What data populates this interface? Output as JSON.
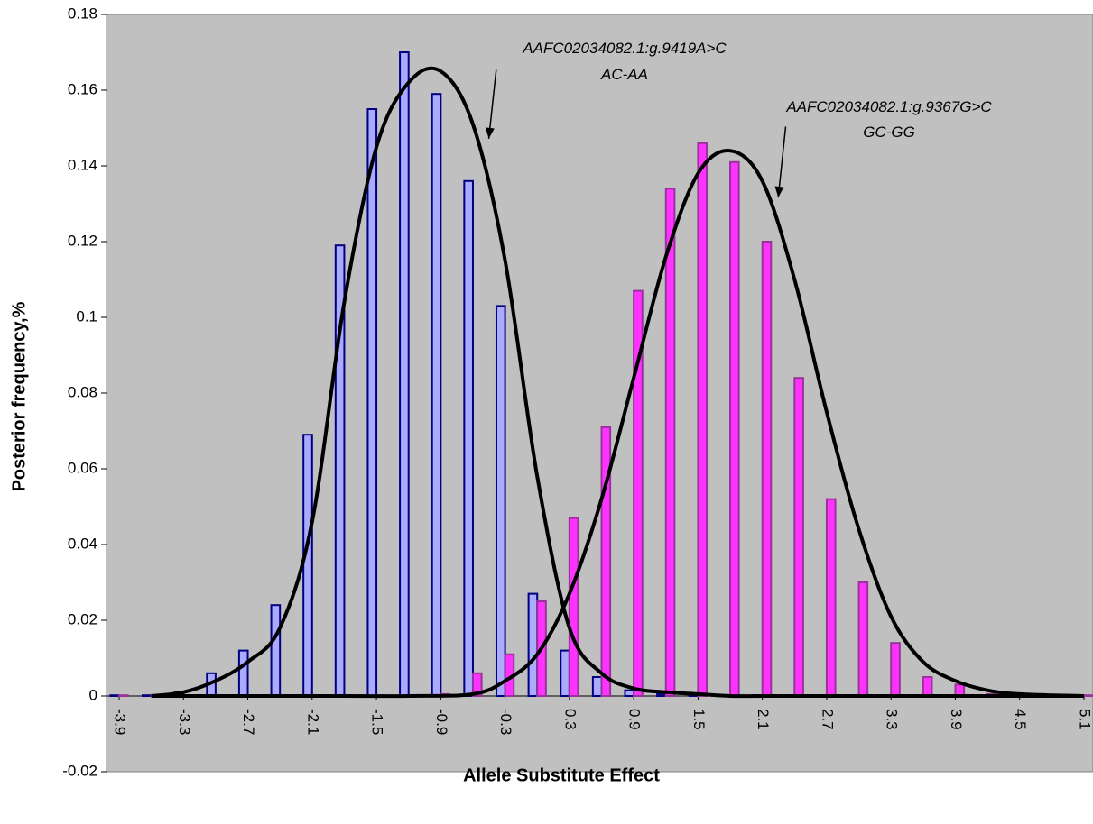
{
  "chart_data": {
    "type": "bar",
    "title": "",
    "xlabel": "Allele Substitute Effect",
    "ylabel": "Posterior frequency,%",
    "ylim": [
      -0.02,
      0.18
    ],
    "yticks": [
      "-0.02",
      "0",
      "0.02",
      "0.04",
      "0.06",
      "0.08",
      "0.1",
      "0.12",
      "0.14",
      "0.16",
      "0.18"
    ],
    "grid": false,
    "x_start": -3.9,
    "x_step": 0.3,
    "x_tick_labels": [
      "-3.9",
      "-3.3",
      "-2.7",
      "-2.1",
      "-1.5",
      "-0.9",
      "-0.3",
      "0.3",
      "0.9",
      "1.5",
      "2.1",
      "2.7",
      "3.3",
      "3.9",
      "4.5",
      "5.1"
    ],
    "categories": [
      "-3.9",
      "-3.6",
      "-3.3",
      "-3.0",
      "-2.7",
      "-2.4",
      "-2.1",
      "-1.8",
      "-1.5",
      "-1.2",
      "-0.9",
      "-0.6",
      "-0.3",
      "0.0",
      "0.3",
      "0.6",
      "0.9",
      "1.2",
      "1.5",
      "1.8",
      "2.1",
      "2.4",
      "2.7",
      "3.0",
      "3.3",
      "3.6",
      "3.9",
      "4.2",
      "4.5",
      "4.8",
      "5.1"
    ],
    "series": [
      {
        "name": "AAFC02034082.1:g.9419A>C AC-AA",
        "kind": "bar",
        "color": "#aaaaff",
        "edge": "#000080",
        "values": [
          0.0,
          0.0,
          0.001,
          0.006,
          0.012,
          0.024,
          0.069,
          0.119,
          0.155,
          0.17,
          0.159,
          0.136,
          0.103,
          0.027,
          0.012,
          0.005,
          0.0015,
          0.0005,
          0.0,
          0.0,
          0.0,
          0.0,
          0.0,
          0.0,
          0.0,
          0.0,
          0.0,
          0.0,
          0.0,
          0.0,
          0.0
        ]
      },
      {
        "name": "AAFC02034082.1:g.9367G>C GC-GG",
        "kind": "bar",
        "color": "#ff33ff",
        "edge": "#993399",
        "values": [
          0.0,
          0.0,
          0.0,
          0.0,
          0.0,
          0.0,
          0.0,
          0.0,
          0.0,
          0.0,
          0.0005,
          0.006,
          0.011,
          0.025,
          0.047,
          0.071,
          0.107,
          0.134,
          0.146,
          0.141,
          0.12,
          0.084,
          0.052,
          0.03,
          0.014,
          0.005,
          0.003,
          0.0005,
          0.0,
          0.0,
          0.0
        ]
      },
      {
        "kind": "curve",
        "color": "#000000",
        "x": [
          -3.6,
          -3.3,
          -3.0,
          -2.7,
          -2.4,
          -2.1,
          -1.8,
          -1.5,
          -1.2,
          -0.9,
          -0.6,
          -0.3,
          0.0,
          0.3,
          0.6,
          0.9,
          1.2,
          1.5,
          1.8,
          2.1,
          2.7,
          3.3,
          3.9,
          4.5,
          5.1
        ],
        "y": [
          0.0,
          0.001,
          0.004,
          0.009,
          0.018,
          0.046,
          0.104,
          0.145,
          0.162,
          0.165,
          0.151,
          0.115,
          0.058,
          0.018,
          0.006,
          0.002,
          0.001,
          0.0005,
          0.0,
          0.0,
          0.0,
          0.0,
          0.0,
          0.0,
          0.0
        ]
      },
      {
        "kind": "curve",
        "color": "#000000",
        "x": [
          -3.6,
          -2.7,
          -1.8,
          -1.2,
          -0.6,
          -0.3,
          0.0,
          0.3,
          0.6,
          0.9,
          1.2,
          1.5,
          1.8,
          2.1,
          2.4,
          2.7,
          3.0,
          3.3,
          3.6,
          3.9,
          4.2,
          4.5,
          5.1
        ],
        "y": [
          0.0,
          0.0,
          0.0,
          0.0,
          0.0005,
          0.004,
          0.011,
          0.027,
          0.052,
          0.084,
          0.116,
          0.138,
          0.144,
          0.136,
          0.11,
          0.075,
          0.044,
          0.021,
          0.009,
          0.004,
          0.0015,
          0.0005,
          0.0
        ]
      }
    ],
    "annotations": [
      {
        "line1": "AAFC02034082.1:g.9419A>C",
        "line2": "AC-AA",
        "arrow_from": [
          -0.45,
          0.1525
        ],
        "arrow_to": [
          -0.25,
          0.1505
        ]
      },
      {
        "line1": "AAFC02034082.1:g.9367G>C",
        "line2": "GC-GG",
        "arrow_from": [
          2.25,
          0.1375
        ],
        "arrow_to": [
          2.45,
          0.135
        ]
      }
    ]
  }
}
